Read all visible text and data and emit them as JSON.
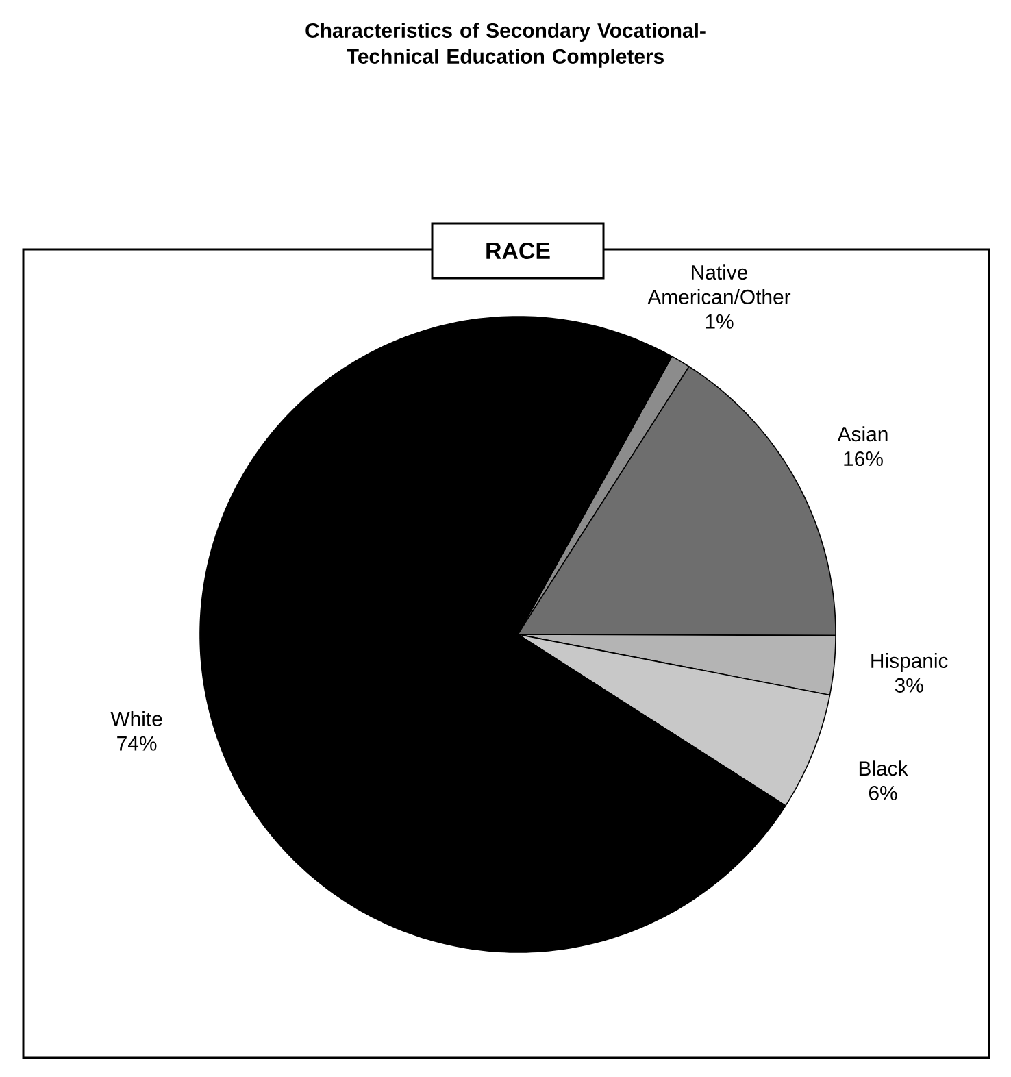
{
  "chart_data": {
    "type": "pie",
    "title": "Characteristics of Secondary Vocational-Technical Education Completers",
    "subtitle": "RACE",
    "categories": [
      "Native American/Other",
      "Asian",
      "Hispanic",
      "Black",
      "White"
    ],
    "values": [
      1,
      16,
      3,
      6,
      74
    ],
    "value_labels": [
      "1%",
      "16%",
      "3%",
      "6%",
      "74%"
    ],
    "colors": [
      "#8c8c8c",
      "#6e6e6e",
      "#b4b4b4",
      "#c8c8c8",
      "#000000"
    ]
  }
}
